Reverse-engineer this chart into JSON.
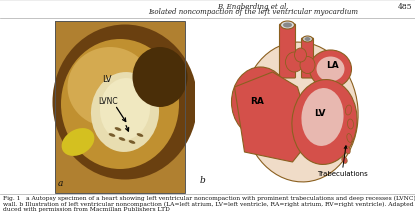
{
  "background_color": "#f0ece4",
  "header_line1": "B. Engberding et al.",
  "header_line2": "Isolated noncompaction of the left ventricular myocardium",
  "page_number": "485",
  "label_a": "a",
  "label_b": "b",
  "trabeculations_label": "Trabeculations",
  "caption_line1": "Fig. 1   a Autopsy specimen of a heart showing left ventricular noncompaction with prominent trabeculations and deep recesses (LVNC) in the left ventricular",
  "caption_line2": "wall. b Illustration of left ventricular noncompaction (LA=left atrium, LV=left ventricle, RA=right atrium, RV=right ventricle). Adapted from [41] and repro-",
  "caption_line3": "duced with permission from Macmillan Publishers LTD",
  "header_fontsize": 5.0,
  "page_num_fontsize": 5.5,
  "caption_fontsize": 4.3,
  "label_fontsize": 6.5,
  "heart_red": "#d4504a",
  "heart_light": "#e8b8b0",
  "heart_bg": "#f0dcc8",
  "heart_outline": "#8B6020",
  "vessel_white": "#e8e8e8",
  "photo_bg": "#c8a050",
  "photo_dark": "#5a3a10",
  "photo_mid": "#a07030",
  "photo_lv": "#d8cca0",
  "photo_lv_dark": "#b8a060",
  "separator_color": "#aaaaaa",
  "ra_label": "RA",
  "la_label": "LA",
  "lv_label": "LV",
  "photo_lv_label": "LV",
  "photo_lvnc_label": "LVNC",
  "panel_bg": "#f2ede5"
}
